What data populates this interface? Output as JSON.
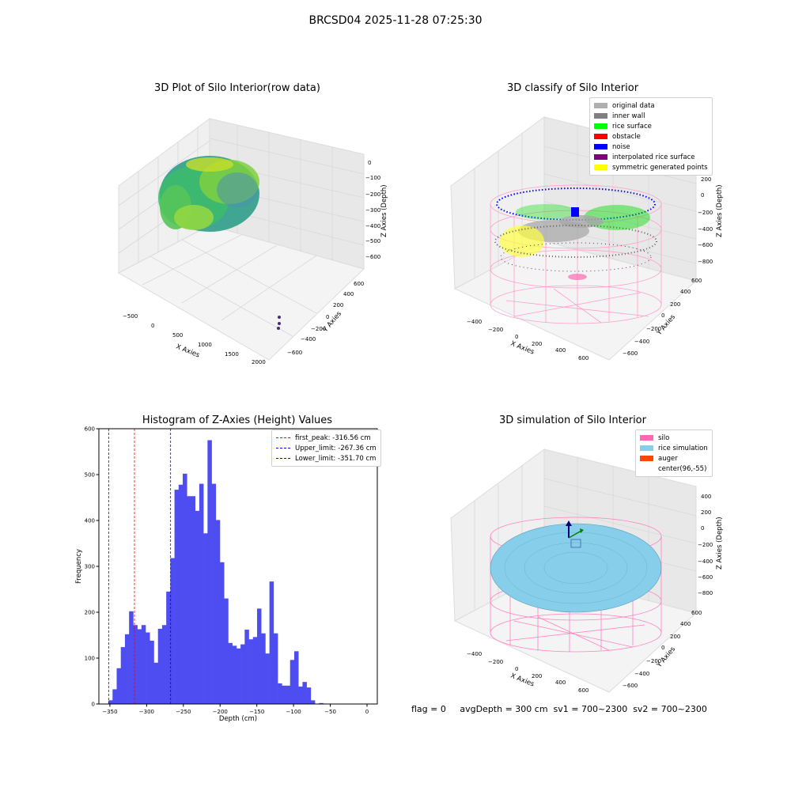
{
  "suptitle": "BRCSD04 2025-11-28 07:25:30",
  "panels": {
    "raw": {
      "title": "3D Plot of Silo Interior(row data)",
      "xlabel": "X Axies",
      "ylabel": "Y Axies",
      "zlabel": "Z Axies (Depth)",
      "xticks": [
        "−500",
        "0",
        "500",
        "1000",
        "1500",
        "2000"
      ],
      "yticks": [
        "−600",
        "−400",
        "−200",
        "0",
        "200",
        "400",
        "600"
      ],
      "zticks": [
        "0",
        "−100",
        "−200",
        "−300",
        "−400",
        "−500",
        "−600"
      ]
    },
    "classify": {
      "title": "3D classify of Silo Interior",
      "xlabel": "X Axies",
      "ylabel": "Y Axies",
      "zlabel": "Z Axies (Depth)",
      "xticks": [
        "−400",
        "−200",
        "0",
        "200",
        "400",
        "600"
      ],
      "yticks": [
        "−600",
        "−400",
        "−200",
        "0",
        "200",
        "400",
        "600"
      ],
      "zticks": [
        "200",
        "0",
        "−200",
        "−400",
        "−600",
        "−800"
      ],
      "legend": [
        {
          "label": "original data",
          "color": "#b0b0b0"
        },
        {
          "label": "inner wall",
          "color": "#808080"
        },
        {
          "label": "rice surface",
          "color": "#00ff00"
        },
        {
          "label": "obstacle",
          "color": "#ff0000"
        },
        {
          "label": "noise",
          "color": "#0000ff"
        },
        {
          "label": "interpolated rice surface",
          "color": "#800080"
        },
        {
          "label": "symmetric generated points",
          "color": "#ffff00"
        }
      ]
    },
    "simulation": {
      "title": "3D simulation of Silo Interior",
      "xlabel": "X Axies",
      "ylabel": "Y Axies",
      "zlabel": "Z Axies (Depth)",
      "xticks": [
        "−400",
        "−200",
        "0",
        "200",
        "400",
        "600"
      ],
      "yticks": [
        "−600",
        "−400",
        "−200",
        "0",
        "200",
        "400",
        "600"
      ],
      "zticks": [
        "400",
        "200",
        "0",
        "−200",
        "−400",
        "−600",
        "−800"
      ],
      "legend": [
        {
          "label": "silo",
          "color": "#ff69b4"
        },
        {
          "label": "rice simulation",
          "color": "#87ceeb"
        },
        {
          "label": "auger",
          "color": "#ff4500"
        },
        {
          "label": "center(96,-55)",
          "color": ""
        }
      ]
    }
  },
  "chart_data": [
    {
      "type": "bar",
      "title": "Histogram of Z-Axies (Height) Values",
      "xlabel": "Depth (cm)",
      "ylabel": "Frequency",
      "xlim": [
        -365,
        14
      ],
      "ylim": [
        0,
        600
      ],
      "xticks": [
        -350,
        -300,
        -250,
        -200,
        -150,
        -100,
        -50,
        0
      ],
      "yticks": [
        0,
        100,
        200,
        300,
        400,
        500,
        600
      ],
      "bar_color": "#4d4df2",
      "bin_start": -352,
      "bin_width": 5.62,
      "values": [
        8,
        32,
        78,
        124,
        152,
        202,
        172,
        163,
        172,
        156,
        138,
        90,
        164,
        172,
        245,
        318,
        467,
        478,
        502,
        453,
        453,
        421,
        480,
        372,
        575,
        480,
        401,
        309,
        230,
        133,
        127,
        121,
        130,
        162,
        141,
        146,
        208,
        154,
        110,
        267,
        154,
        45,
        40,
        40,
        96,
        115,
        38,
        48,
        36,
        8,
        0,
        2,
        0
      ],
      "vlines": [
        {
          "label": "first_peak: -316.56 cm",
          "x": -316.56,
          "color": "#ff0000"
        },
        {
          "label": "Upper_limit: -267.36 cm",
          "x": -267.36,
          "color": "#0000ff"
        },
        {
          "label": "Lower_limit: -351.70 cm",
          "x": -351.7,
          "color": "#0000ff"
        }
      ]
    }
  ],
  "footer": "flag = 0     avgDepth = 300 cm  sv1 = 700~2300  sv2 = 700~2300"
}
